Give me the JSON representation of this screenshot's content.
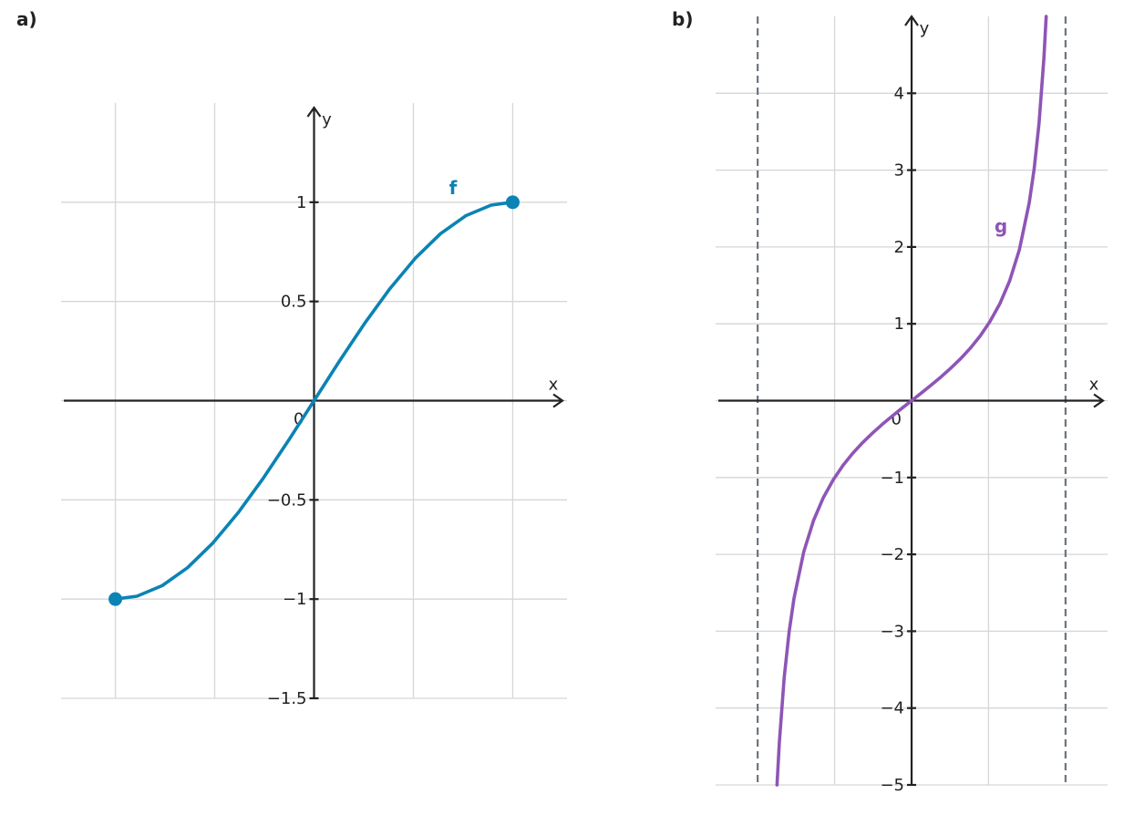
{
  "chart_data": [
    {
      "type": "line",
      "title": "a)",
      "xlabel": "x",
      "ylabel": "y",
      "xlim": [
        -2,
        2
      ],
      "ylim": [
        -1.5,
        1.5
      ],
      "xgrid": [
        -1.5708,
        -0.7854,
        0.7854,
        1.5708
      ],
      "yticks": [
        {
          "value": -1.5,
          "label": "−1.5"
        },
        {
          "value": -1,
          "label": "−1"
        },
        {
          "value": -0.5,
          "label": "−0.5"
        },
        0,
        0.5,
        1
      ],
      "grid": true,
      "endpoints": true,
      "x": [
        -1.5708,
        -1.4,
        -1.2,
        -1.0,
        -0.8,
        -0.6,
        -0.4,
        -0.2,
        0,
        0.2,
        0.4,
        0.6,
        0.8,
        1.0,
        1.2,
        1.4,
        1.5708
      ],
      "series": [
        {
          "name": "f",
          "color": "#0b83b4",
          "values": [
            -1,
            -0.9854,
            -0.932,
            -0.8415,
            -0.7174,
            -0.5646,
            -0.3894,
            -0.1987,
            0,
            0.1987,
            0.3894,
            0.5646,
            0.7174,
            0.8415,
            0.932,
            0.9854,
            1
          ]
        }
      ]
    },
    {
      "type": "line",
      "title": "b)",
      "xlabel": "x",
      "ylabel": "y",
      "xlim": [
        -2,
        2
      ],
      "ylim": [
        -5,
        5
      ],
      "xgrid": [
        -0.7854,
        0.7854
      ],
      "asymptotes": [
        -1.5708,
        1.5708
      ],
      "yticks": [
        {
          "value": -5,
          "label": "−5"
        },
        {
          "value": -4,
          "label": "−4"
        },
        {
          "value": -3,
          "label": "−3"
        },
        {
          "value": -2,
          "label": "−2"
        },
        {
          "value": -1,
          "label": "−1"
        },
        0,
        1,
        2,
        3,
        4
      ],
      "grid": true,
      "endpoints": false,
      "x": [
        -1.3734,
        -1.35,
        -1.3,
        -1.25,
        -1.2,
        -1.1,
        -1.0,
        -0.9,
        -0.8,
        -0.7,
        -0.6,
        -0.5,
        -0.4,
        -0.3,
        -0.2,
        -0.1,
        0,
        0.1,
        0.2,
        0.3,
        0.4,
        0.5,
        0.6,
        0.7,
        0.8,
        0.9,
        1.0,
        1.1,
        1.2,
        1.25,
        1.3,
        1.35,
        1.3734
      ],
      "series": [
        {
          "name": "g",
          "color": "#8e55b6",
          "values": [
            -5,
            -4.455,
            -3.602,
            -3.01,
            -2.572,
            -1.965,
            -1.557,
            -1.26,
            -1.03,
            -0.842,
            -0.684,
            -0.546,
            -0.423,
            -0.309,
            -0.203,
            -0.1,
            0,
            0.1,
            0.203,
            0.309,
            0.423,
            0.546,
            0.684,
            0.842,
            1.03,
            1.26,
            1.557,
            1.965,
            2.572,
            3.01,
            3.602,
            4.455,
            5
          ]
        }
      ]
    }
  ]
}
